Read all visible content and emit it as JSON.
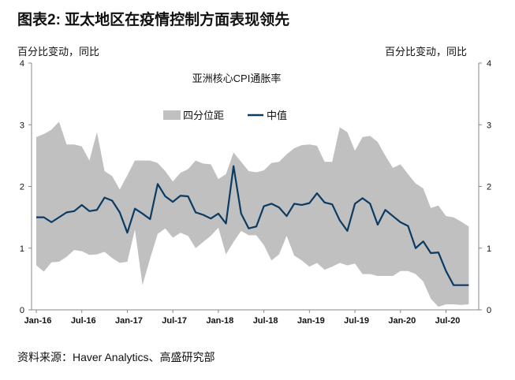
{
  "header": {
    "title": "图表2: 亚太地区在疫情控制方面表现领先",
    "left_unit": "百分比变动，同比",
    "right_unit": "百分比变动，同比"
  },
  "footer": {
    "source": "资料来源：Haver Analytics、高盛研究部"
  },
  "colors": {
    "band": "#c0c0c0",
    "line": "#0b3a63",
    "axis": "#888888"
  },
  "chart_data": {
    "type": "area",
    "title": "亚洲核心CPI通胀率",
    "xlabel": "",
    "ylabel": "百分比变动，同比",
    "ylim": [
      0,
      4
    ],
    "yticks": [
      "0",
      "1",
      "2",
      "3",
      "4"
    ],
    "xtick_labels": [
      "Jan-16",
      "Jul-16",
      "Jan-17",
      "Jul-17",
      "Jan-18",
      "Jul-18",
      "Jan-19",
      "Jul-19",
      "Jan-20",
      "Jul-20"
    ],
    "xtick_index": [
      0,
      6,
      12,
      18,
      24,
      30,
      36,
      42,
      48,
      54
    ],
    "x_start": "Jan-16",
    "x_end": "Oct-20",
    "frequency": "monthly",
    "legend": {
      "placement": "top-center",
      "entries": [
        "四分位距",
        "中值"
      ]
    },
    "series": [
      {
        "name": "四分位距-上限",
        "values": [
          2.8,
          2.85,
          2.92,
          3.05,
          2.68,
          2.68,
          2.65,
          2.42,
          2.88,
          2.25,
          2.17,
          1.95,
          2.18,
          2.42,
          2.42,
          2.42,
          2.38,
          2.25,
          2.08,
          2.22,
          2.28,
          2.42,
          2.37,
          2.36,
          2.12,
          2.2,
          2.55,
          2.4,
          2.25,
          2.23,
          2.26,
          2.38,
          2.4,
          2.52,
          2.62,
          2.67,
          2.68,
          2.66,
          2.4,
          2.4,
          2.96,
          2.88,
          2.58,
          2.8,
          2.82,
          2.72,
          2.5,
          2.3,
          2.36,
          2.2,
          2.05,
          1.97,
          1.65,
          1.69,
          1.52,
          1.5,
          1.43,
          1.35
        ]
      },
      {
        "name": "四分位距-下限",
        "values": [
          0.72,
          0.62,
          0.77,
          0.78,
          0.86,
          0.97,
          0.95,
          0.89,
          0.9,
          0.94,
          0.84,
          0.76,
          0.78,
          1.3,
          0.4,
          0.83,
          1.23,
          1.32,
          1.17,
          1.25,
          1.2,
          1.0,
          1.1,
          1.2,
          1.33,
          0.9,
          1.1,
          1.28,
          1.21,
          1.21,
          1.05,
          0.8,
          0.9,
          1.2,
          0.88,
          0.8,
          0.7,
          0.76,
          0.65,
          0.7,
          0.76,
          0.72,
          0.75,
          0.58,
          0.58,
          0.55,
          0.55,
          0.55,
          0.63,
          0.63,
          0.58,
          0.46,
          0.18,
          0.05,
          0.09,
          0.09,
          0.08,
          0.09
        ]
      },
      {
        "name": "中值",
        "values": [
          1.5,
          1.5,
          1.42,
          1.5,
          1.58,
          1.6,
          1.7,
          1.6,
          1.62,
          1.82,
          1.77,
          1.58,
          1.25,
          1.64,
          1.56,
          1.47,
          2.04,
          1.84,
          1.75,
          1.85,
          1.84,
          1.58,
          1.54,
          1.48,
          1.56,
          1.4,
          2.33,
          1.56,
          1.32,
          1.35,
          1.68,
          1.72,
          1.66,
          1.52,
          1.72,
          1.7,
          1.73,
          1.89,
          1.74,
          1.71,
          1.45,
          1.28,
          1.72,
          1.81,
          1.72,
          1.38,
          1.62,
          1.52,
          1.42,
          1.36,
          1.0,
          1.11,
          0.92,
          0.93,
          0.63,
          0.4,
          0.4,
          0.4
        ]
      }
    ]
  }
}
